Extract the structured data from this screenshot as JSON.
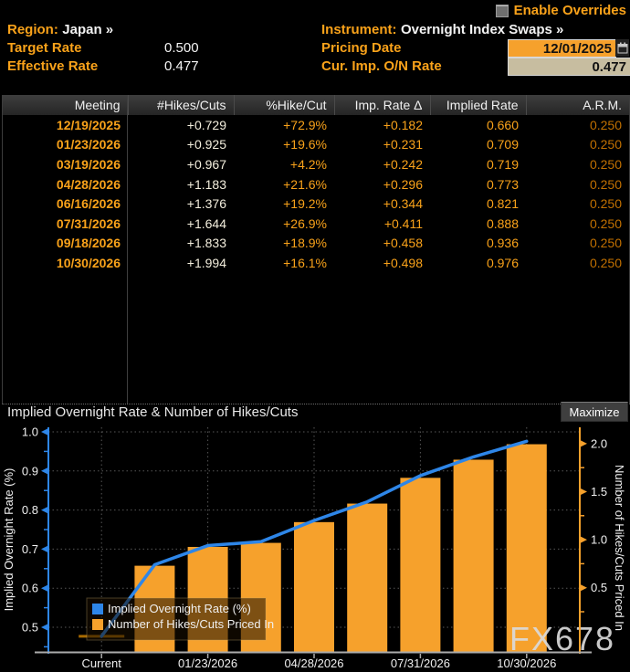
{
  "header": {
    "enable_overrides_label": "Enable Overrides",
    "region_label": "Region:",
    "region_value": "Japan »",
    "instrument_label": "Instrument:",
    "instrument_value": "Overnight Index Swaps »",
    "target_rate_label": "Target Rate",
    "target_rate_value": "0.500",
    "effective_rate_label": "Effective Rate",
    "effective_rate_value": "0.477",
    "pricing_date_label": "Pricing Date",
    "pricing_date_value": "12/01/2025",
    "cur_imp_label": "Cur. Imp. O/N Rate",
    "cur_imp_value": "0.477"
  },
  "table": {
    "columns": [
      "Meeting",
      "#Hikes/Cuts",
      "%Hike/Cut",
      "Imp. Rate Δ",
      "Implied Rate",
      "A.R.M."
    ],
    "rows": [
      [
        "12/19/2025",
        "+0.729",
        "+72.9%",
        "+0.182",
        "0.660",
        "0.250"
      ],
      [
        "01/23/2026",
        "+0.925",
        "+19.6%",
        "+0.231",
        "0.709",
        "0.250"
      ],
      [
        "03/19/2026",
        "+0.967",
        "+4.2%",
        "+0.242",
        "0.719",
        "0.250"
      ],
      [
        "04/28/2026",
        "+1.183",
        "+21.6%",
        "+0.296",
        "0.773",
        "0.250"
      ],
      [
        "06/16/2026",
        "+1.376",
        "+19.2%",
        "+0.344",
        "0.821",
        "0.250"
      ],
      [
        "07/31/2026",
        "+1.644",
        "+26.9%",
        "+0.411",
        "0.888",
        "0.250"
      ],
      [
        "09/18/2026",
        "+1.833",
        "+18.9%",
        "+0.458",
        "0.936",
        "0.250"
      ],
      [
        "10/30/2026",
        "+1.994",
        "+16.1%",
        "+0.498",
        "0.976",
        "0.250"
      ]
    ]
  },
  "chart": {
    "title": "Implied Overnight Rate & Number of Hikes/Cuts",
    "maximize_label": "Maximize",
    "watermark": "FX678"
  },
  "chart_data": {
    "type": "bar+line",
    "categories": [
      "Current",
      "12/19/2025",
      "01/23/2026",
      "03/19/2026",
      "04/28/2026",
      "06/16/2026",
      "07/31/2026",
      "09/18/2026",
      "10/30/2026"
    ],
    "series": [
      {
        "name": "Implied Overnight Rate (%)",
        "type": "line",
        "axis": "left",
        "color": "#2e86e8",
        "values": [
          0.477,
          0.66,
          0.709,
          0.719,
          0.773,
          0.821,
          0.888,
          0.936,
          0.976
        ]
      },
      {
        "name": "Number of Hikes/Cuts Priced In",
        "type": "bar",
        "axis": "right",
        "color": "#f6a12c",
        "values": [
          null,
          0.729,
          0.925,
          0.967,
          1.183,
          1.376,
          1.644,
          1.833,
          1.994
        ]
      }
    ],
    "current_marker": {
      "category": "Current",
      "value": 0.477
    },
    "left_axis": {
      "label": "Implied Overnight Rate (%)",
      "ticks": [
        1.0,
        0.9,
        0.8,
        0.7,
        0.6,
        0.5
      ],
      "range": [
        0.437,
        1.012
      ],
      "color": "#2e86e8"
    },
    "right_axis": {
      "label": "Number of Hikes/Cuts Priced In",
      "ticks": [
        2.0,
        1.5,
        1.0,
        0.5
      ],
      "range": [
        -0.17,
        2.17
      ],
      "color": "#f6a12c"
    },
    "x_tick_labels": [
      "Current",
      "01/23/2026",
      "04/28/2026",
      "07/31/2026",
      "10/30/2026"
    ],
    "x_label_slots": [
      0,
      2,
      4,
      6,
      8
    ],
    "grid": "dotted",
    "legend_position": "lower-left"
  },
  "colors": {
    "amber_text": "#f9a21a",
    "dim_amber_text": "#c17000",
    "cream_text": "#f3eedd",
    "line_blue": "#2e86e8",
    "bar_orange": "#f6a12c",
    "current_dash": "#a86a00",
    "date_input_bg": "#f6a12c",
    "rate_input_bg": "#c7bda0"
  }
}
